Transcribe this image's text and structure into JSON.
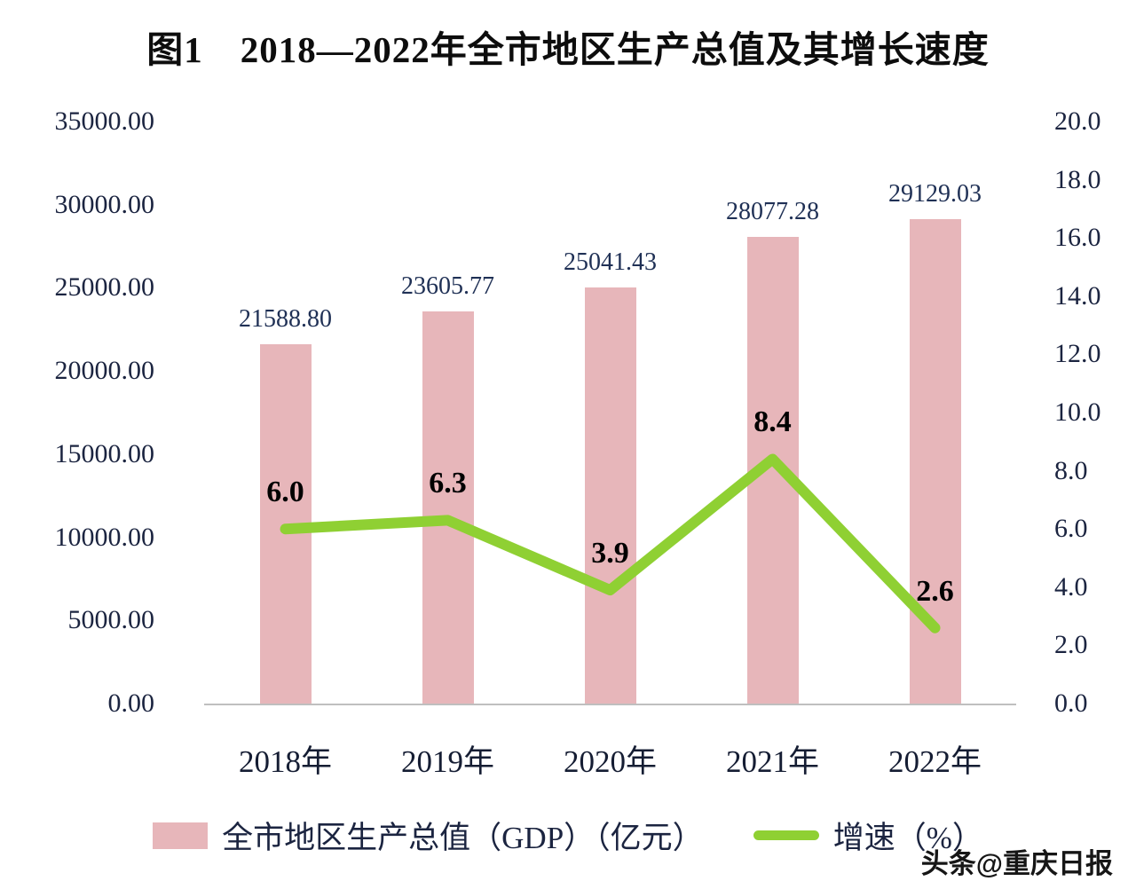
{
  "title": "图1　2018—2022年全市地区生产总值及其增长速度",
  "watermark": "头条@重庆日报",
  "chart_data": {
    "type": "bar+line",
    "title": "图1　2018—2022年全市地区生产总值及其增长速度",
    "categories": [
      "2018年",
      "2019年",
      "2020年",
      "2021年",
      "2022年"
    ],
    "series": [
      {
        "name": "全市地区生产总值（GDP）（亿元）",
        "type": "bar",
        "axis": "left",
        "color": "#e7b6ba",
        "values": [
          21588.8,
          23605.77,
          25041.43,
          28077.28,
          29129.03
        ],
        "labels": [
          "21588.80",
          "23605.77",
          "25041.43",
          "28077.28",
          "29129.03"
        ]
      },
      {
        "name": "增速（%）",
        "type": "line",
        "axis": "right",
        "color": "#8fd033",
        "values": [
          6.0,
          6.3,
          3.9,
          8.4,
          2.6
        ],
        "labels": [
          "6.0",
          "6.3",
          "3.9",
          "8.4",
          "2.6"
        ]
      }
    ],
    "left_axis": {
      "min": 0,
      "max": 35000,
      "ticks": [
        "35000.00",
        "30000.00",
        "25000.00",
        "20000.00",
        "15000.00",
        "10000.00",
        "5000.00",
        "0.00"
      ]
    },
    "right_axis": {
      "min": 0,
      "max": 20,
      "ticks": [
        "20.0",
        "18.0",
        "16.0",
        "14.0",
        "12.0",
        "10.0",
        "8.0",
        "6.0",
        "4.0",
        "2.0",
        "0.0"
      ]
    },
    "grid": false,
    "legend_position": "bottom"
  }
}
